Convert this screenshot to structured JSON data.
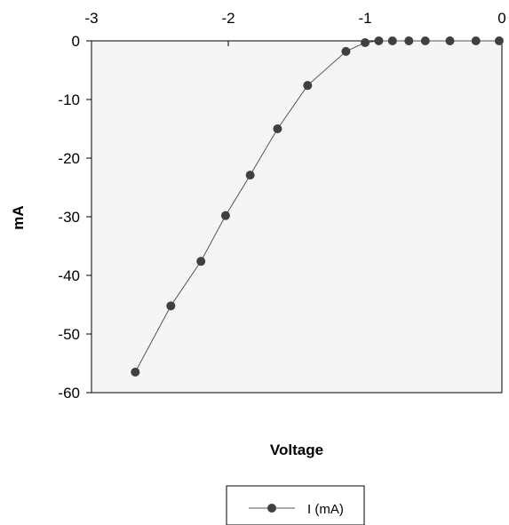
{
  "chart_data": {
    "type": "line",
    "title": "",
    "xlabel": "Voltage",
    "ylabel": "mA",
    "xlim": [
      -3,
      0
    ],
    "ylim": [
      -60,
      0
    ],
    "x_ticks": [
      -3,
      -2,
      -1,
      0
    ],
    "y_ticks": [
      0,
      -10,
      -20,
      -30,
      -40,
      -50,
      -60
    ],
    "x_axis_position": "top",
    "grid": false,
    "legend_position": "bottom-center",
    "colors": {
      "plot_background": "#f5f5f5",
      "series_line": "#555555",
      "marker": "#404040"
    },
    "series": [
      {
        "name": "I (mA)",
        "x": [
          -2.68,
          -2.42,
          -2.2,
          -2.02,
          -1.84,
          -1.64,
          -1.42,
          -1.14,
          -1.0,
          -0.9,
          -0.8,
          -0.68,
          -0.56,
          -0.38,
          -0.19,
          -0.02
        ],
        "y": [
          -56.5,
          -45.2,
          -37.6,
          -29.8,
          -22.9,
          -15.0,
          -7.6,
          -1.8,
          -0.3,
          0,
          0,
          0,
          0,
          0,
          0,
          0
        ]
      }
    ]
  }
}
